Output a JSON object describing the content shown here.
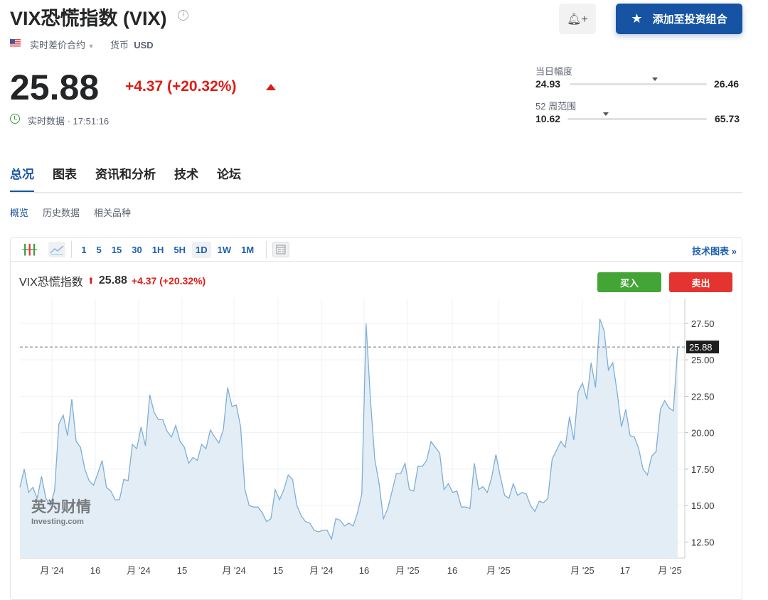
{
  "header": {
    "title": "VIX恐慌指数 (VIX)",
    "contract_type": "实时差价合约",
    "currency_label": "货币",
    "currency": "USD",
    "price": "25.88",
    "change": "+4.37 (+20.32%)",
    "realtime_label": "实时数据 · 17:51:16",
    "add_portfolio_label": "添加至投资组合"
  },
  "ranges": {
    "day": {
      "label": "当日幅度",
      "low": "24.93",
      "high": "26.46",
      "position": 0.62
    },
    "week52": {
      "label": "52 周范围",
      "low": "10.62",
      "high": "65.73",
      "position": 0.277
    }
  },
  "tabs": [
    {
      "label": "总况",
      "active": true
    },
    {
      "label": "图表"
    },
    {
      "label": "资讯和分析"
    },
    {
      "label": "技术"
    },
    {
      "label": "论坛"
    }
  ],
  "subtabs": [
    {
      "label": "概览",
      "active": true
    },
    {
      "label": "历史数据"
    },
    {
      "label": "相关品种"
    }
  ],
  "toolbar": {
    "timeframes": [
      "1",
      "5",
      "15",
      "30",
      "1H",
      "5H",
      "1D",
      "1W",
      "1M"
    ],
    "active_timeframe": "1D",
    "tech_chart_label": "技术图表 »"
  },
  "chart_header": {
    "name": "VIX恐慌指数",
    "price": "25.88",
    "change": "+4.37 (+20.32%)",
    "buy_label": "买入",
    "sell_label": "卖出"
  },
  "watermark": {
    "cn": "英为财情",
    "en": "Investing.com"
  },
  "colors": {
    "accent": "#1654a3",
    "up": "#dd1d15",
    "buy": "#43a535",
    "sell": "#e3342f",
    "line": "#7eaed6",
    "area": "#e3edf6"
  },
  "chart_data": {
    "type": "area",
    "ylim": [
      11.4,
      29.2
    ],
    "y_ticks": [
      "27.50",
      "25.00",
      "22.50",
      "20.00",
      "17.50",
      "15.00",
      "12.50"
    ],
    "x_ticks": [
      "月 '24",
      "16",
      "月 '24",
      "15",
      "月 '24",
      "15",
      "月 '24",
      "16",
      "月 '25",
      "16",
      "月 '25",
      "月 '25",
      "17",
      "月 '25"
    ],
    "current_value": "25.88",
    "grid": true,
    "values": [
      16.25,
      17.5,
      15.9,
      16.25,
      15.5,
      17,
      15.5,
      15,
      16,
      20.6,
      21.2,
      19.8,
      22.3,
      19.4,
      19,
      17.5,
      16.7,
      16.4,
      17.2,
      18.1,
      16.25,
      16,
      15.4,
      15.4,
      16.8,
      16.7,
      19.2,
      18.9,
      20.4,
      19.1,
      22.6,
      21.4,
      20.9,
      20.9,
      20.1,
      19.7,
      20.5,
      19.4,
      19,
      17.9,
      18.3,
      18.1,
      19.2,
      18.9,
      20.2,
      19.7,
      19.3,
      20.2,
      23.1,
      21.8,
      21.9,
      20.4,
      16.1,
      15,
      14.9,
      14.9,
      14.5,
      13.9,
      14.1,
      16.1,
      15.4,
      16.1,
      17.1,
      16.8,
      15,
      14.3,
      13.9,
      13.8,
      13.3,
      13.2,
      13.3,
      13.3,
      12.7,
      14.1,
      14,
      13.6,
      13.8,
      13.6,
      14.5,
      15.8,
      27.5,
      22.3,
      18.2,
      16.5,
      14.1,
      14.8,
      16,
      17.2,
      17.2,
      17.9,
      16.1,
      16,
      17.7,
      17.7,
      18.1,
      19.4,
      19,
      18.6,
      16.1,
      16.5,
      15.9,
      16,
      14.9,
      14.9,
      14.8,
      17.9,
      16.1,
      16.3,
      15.9,
      16.9,
      18.5,
      17,
      15.7,
      15.5,
      16.5,
      15.7,
      15.9,
      15.8,
      15,
      14.6,
      15.3,
      15.2,
      15.5,
      18.2,
      18.8,
      19.4,
      19,
      21.1,
      19.5,
      22.8,
      23.4,
      22.3,
      24.8,
      23.1,
      27.8,
      27,
      24.3,
      24.8,
      22.8,
      20.4,
      21.6,
      19.8,
      19.7,
      18.9,
      17.5,
      17.1,
      18.4,
      18.7,
      21.6,
      22.2,
      21.7,
      21.5,
      25.88
    ]
  }
}
